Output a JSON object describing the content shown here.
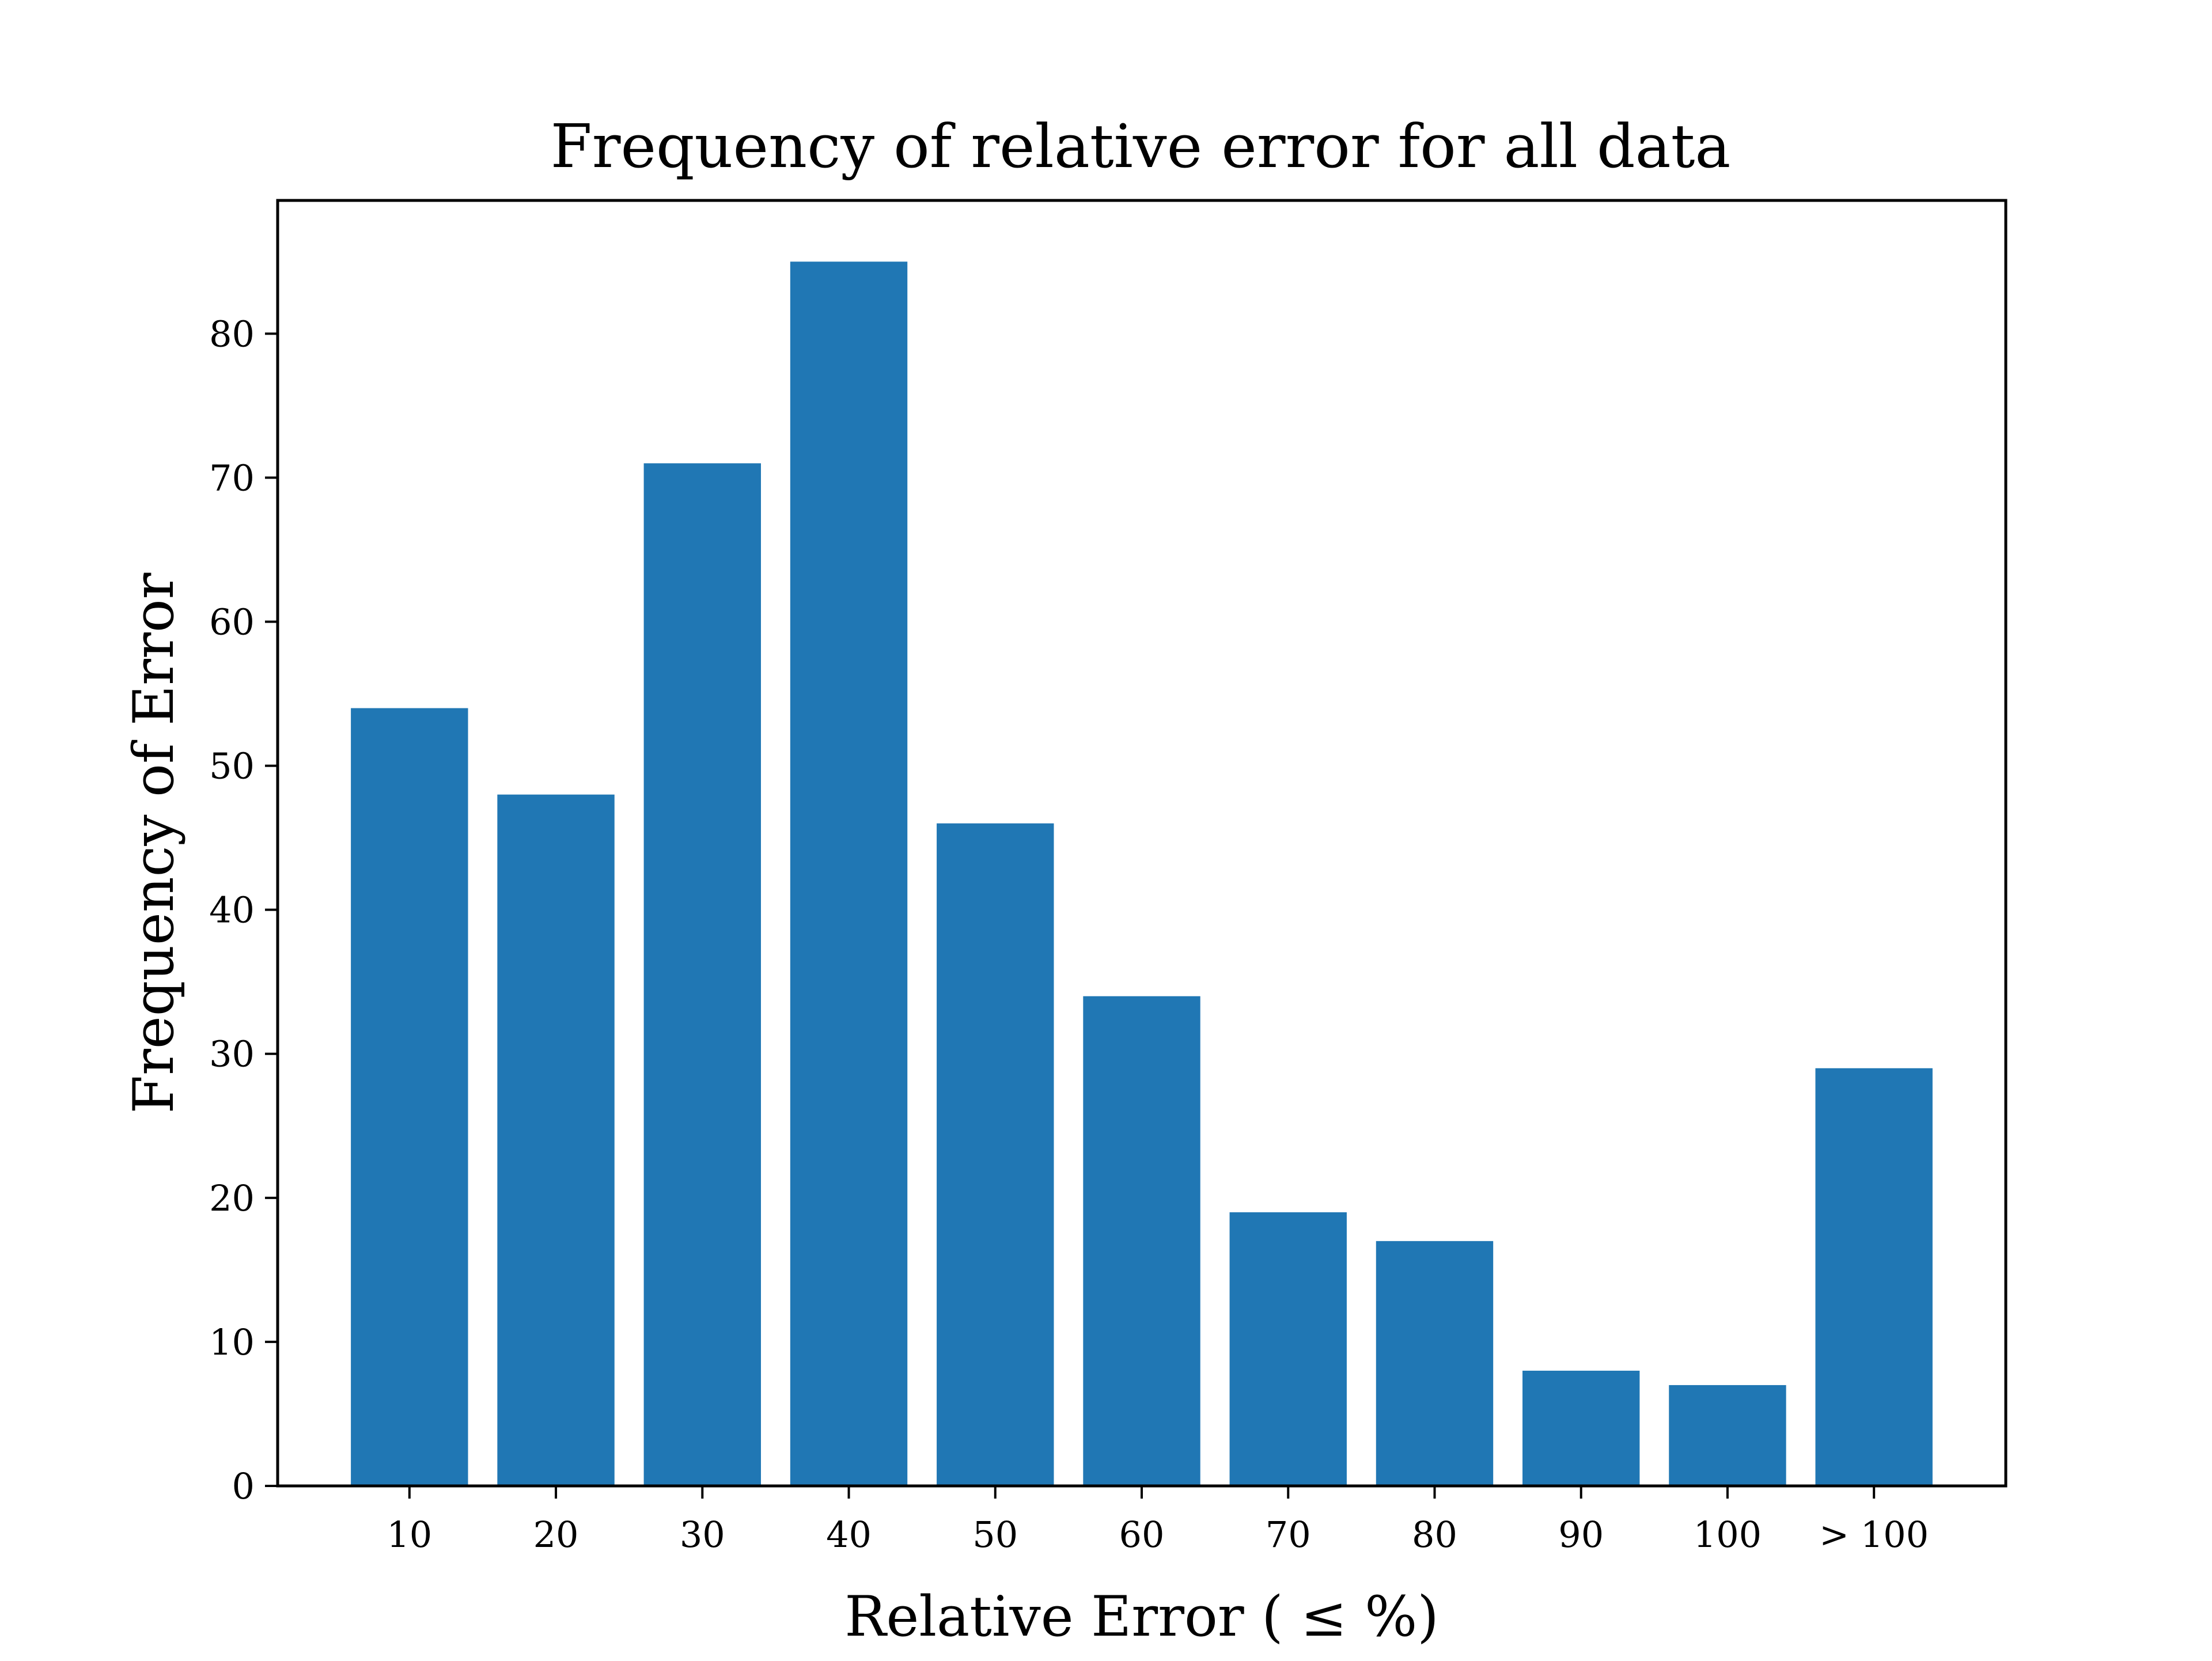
{
  "chart_data": {
    "type": "bar",
    "title": "Frequency of relative error for all data",
    "xlabel": "Relative Error ( ≤ %)",
    "ylabel": "Frequency of Error",
    "categories": [
      "10",
      "20",
      "30",
      "40",
      "50",
      "60",
      "70",
      "80",
      "90",
      "100",
      "> 100"
    ],
    "values": [
      54,
      48,
      71,
      85,
      46,
      34,
      19,
      17,
      8,
      7,
      29
    ],
    "ylim": [
      0,
      89.25
    ],
    "yticks": [
      0,
      10,
      20,
      30,
      40,
      50,
      60,
      70,
      80
    ],
    "grid": false,
    "legend": "none",
    "bar_color": "#2077b4"
  }
}
